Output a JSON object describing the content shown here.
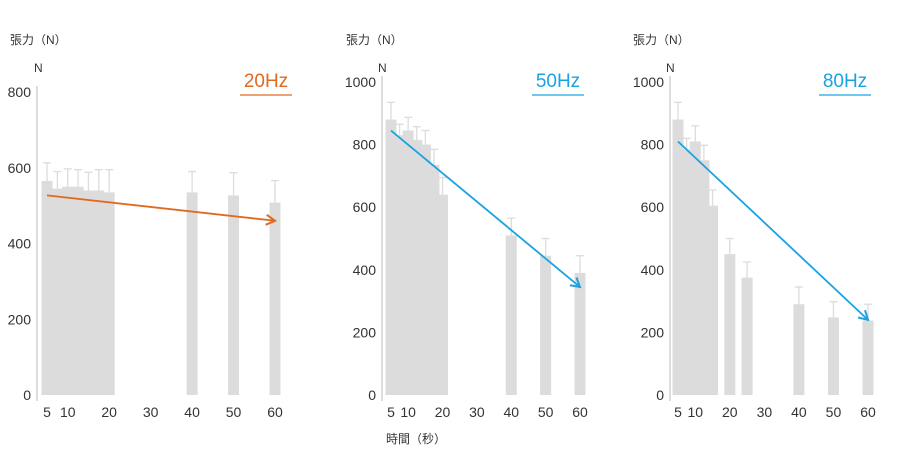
{
  "x_axis_label": "時間（秒）",
  "chart_data": [
    {
      "type": "bar",
      "title": "20Hz",
      "accent_color": "#e06a1f",
      "ylabel": "張力（N）",
      "yunit": "N",
      "ylim": [
        0,
        800
      ],
      "yticks": [
        0,
        200,
        400,
        600,
        800
      ],
      "x": [
        5,
        7.5,
        10,
        12.5,
        15,
        17.5,
        20,
        22.5,
        25,
        27.5,
        30,
        40,
        50,
        60
      ],
      "xticks": [
        5,
        10,
        20,
        30,
        40,
        50,
        60
      ],
      "values": [
        565,
        545,
        550,
        550,
        540,
        540,
        535,
        null,
        null,
        null,
        null,
        535,
        527,
        508
      ],
      "errors": [
        48,
        45,
        47,
        45,
        48,
        55,
        60,
        null,
        null,
        null,
        null,
        55,
        60,
        58
      ],
      "trend": {
        "from": [
          5,
          527
        ],
        "to": [
          60,
          460
        ]
      }
    },
    {
      "type": "bar",
      "title": "50Hz",
      "accent_color": "#1aa3e0",
      "ylabel": "張力（N）",
      "yunit": "N",
      "ylim": [
        0,
        1000
      ],
      "yticks": [
        0,
        200,
        400,
        600,
        800,
        1000
      ],
      "x": [
        5,
        7.5,
        10,
        12.5,
        15,
        17.5,
        20,
        40,
        50,
        60
      ],
      "xticks": [
        5,
        10,
        20,
        30,
        40,
        50,
        60
      ],
      "values": [
        880,
        830,
        845,
        815,
        800,
        735,
        640,
        510,
        445,
        390
      ],
      "errors": [
        55,
        35,
        42,
        42,
        45,
        50,
        55,
        55,
        55,
        55
      ],
      "trend": {
        "from": [
          5,
          845
        ],
        "to": [
          60,
          345
        ]
      }
    },
    {
      "type": "bar",
      "title": "80Hz",
      "accent_color": "#1aa3e0",
      "ylabel": "張力（N）",
      "yunit": "N",
      "ylim": [
        0,
        1000
      ],
      "yticks": [
        0,
        200,
        400,
        600,
        800,
        1000
      ],
      "x": [
        5,
        7.5,
        10,
        12.5,
        15,
        20,
        25,
        40,
        50,
        60
      ],
      "xticks": [
        5,
        10,
        20,
        30,
        40,
        50,
        60
      ],
      "values": [
        880,
        785,
        810,
        750,
        605,
        450,
        375,
        290,
        248,
        238
      ],
      "errors": [
        55,
        35,
        50,
        48,
        50,
        50,
        50,
        55,
        50,
        52
      ],
      "trend": {
        "from": [
          5,
          810
        ],
        "to": [
          60,
          240
        ]
      }
    }
  ]
}
